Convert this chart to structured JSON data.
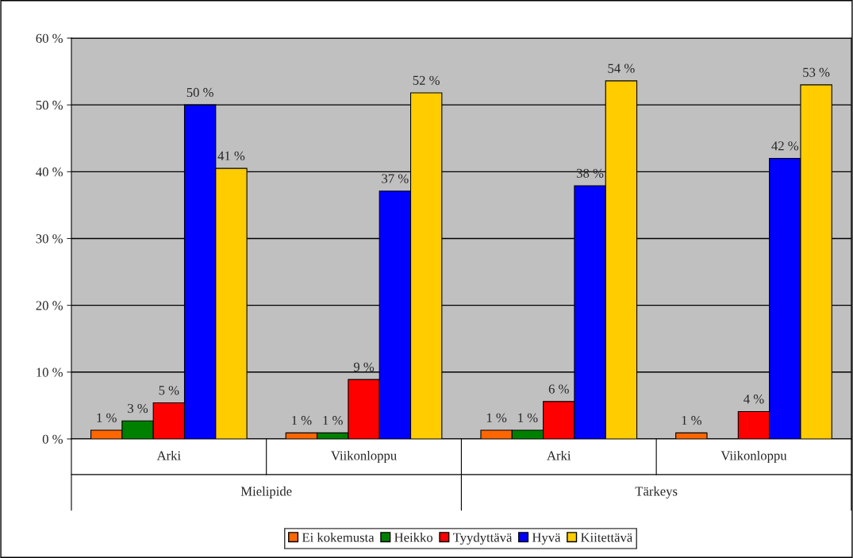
{
  "chart_data": {
    "type": "bar",
    "categories": [
      "Arki",
      "Viikonloppu",
      "Arki",
      "Viikonloppu"
    ],
    "annotations": [
      "Mielipide",
      "Tärkeys"
    ],
    "series": [
      {
        "name": "Ei kokemusta",
        "color": "#ff6600",
        "values": [
          1.3,
          0.9,
          1.3,
          0.9
        ],
        "value_labels": [
          "1 %",
          "1 %",
          "1 %",
          "1 %"
        ]
      },
      {
        "name": "Heikko",
        "color": "#008000",
        "values": [
          2.7,
          0.9,
          1.3,
          null
        ],
        "value_labels": [
          "3 %",
          "1 %",
          "1 %",
          null
        ]
      },
      {
        "name": "Tyydyttävä",
        "color": "#ff0000",
        "values": [
          5.4,
          8.9,
          5.6,
          4.1
        ],
        "value_labels": [
          "5 %",
          "9 %",
          "6 %",
          "4 %"
        ]
      },
      {
        "name": "Hyvä",
        "color": "#0000ff",
        "values": [
          50.0,
          37.1,
          37.9,
          42.0
        ],
        "value_labels": [
          "50 %",
          "37 %",
          "38 %",
          "42 %"
        ]
      },
      {
        "name": "Kiitettävä",
        "color": "#ffcc00",
        "values": [
          40.5,
          51.8,
          53.6,
          53.0
        ],
        "value_labels": [
          "41 %",
          "52 %",
          "54 %",
          "53 %"
        ]
      }
    ],
    "ylim": [
      0,
      60
    ],
    "yticks": [
      {
        "value": 0,
        "label": "0 %"
      },
      {
        "value": 10,
        "label": "10 %"
      },
      {
        "value": 20,
        "label": "20 %"
      },
      {
        "value": 30,
        "label": "30 %"
      },
      {
        "value": 40,
        "label": "40 %"
      },
      {
        "value": 50,
        "label": "50 %"
      },
      {
        "value": 60,
        "label": "60 %"
      }
    ],
    "grid": "y",
    "legend": "bottom"
  }
}
